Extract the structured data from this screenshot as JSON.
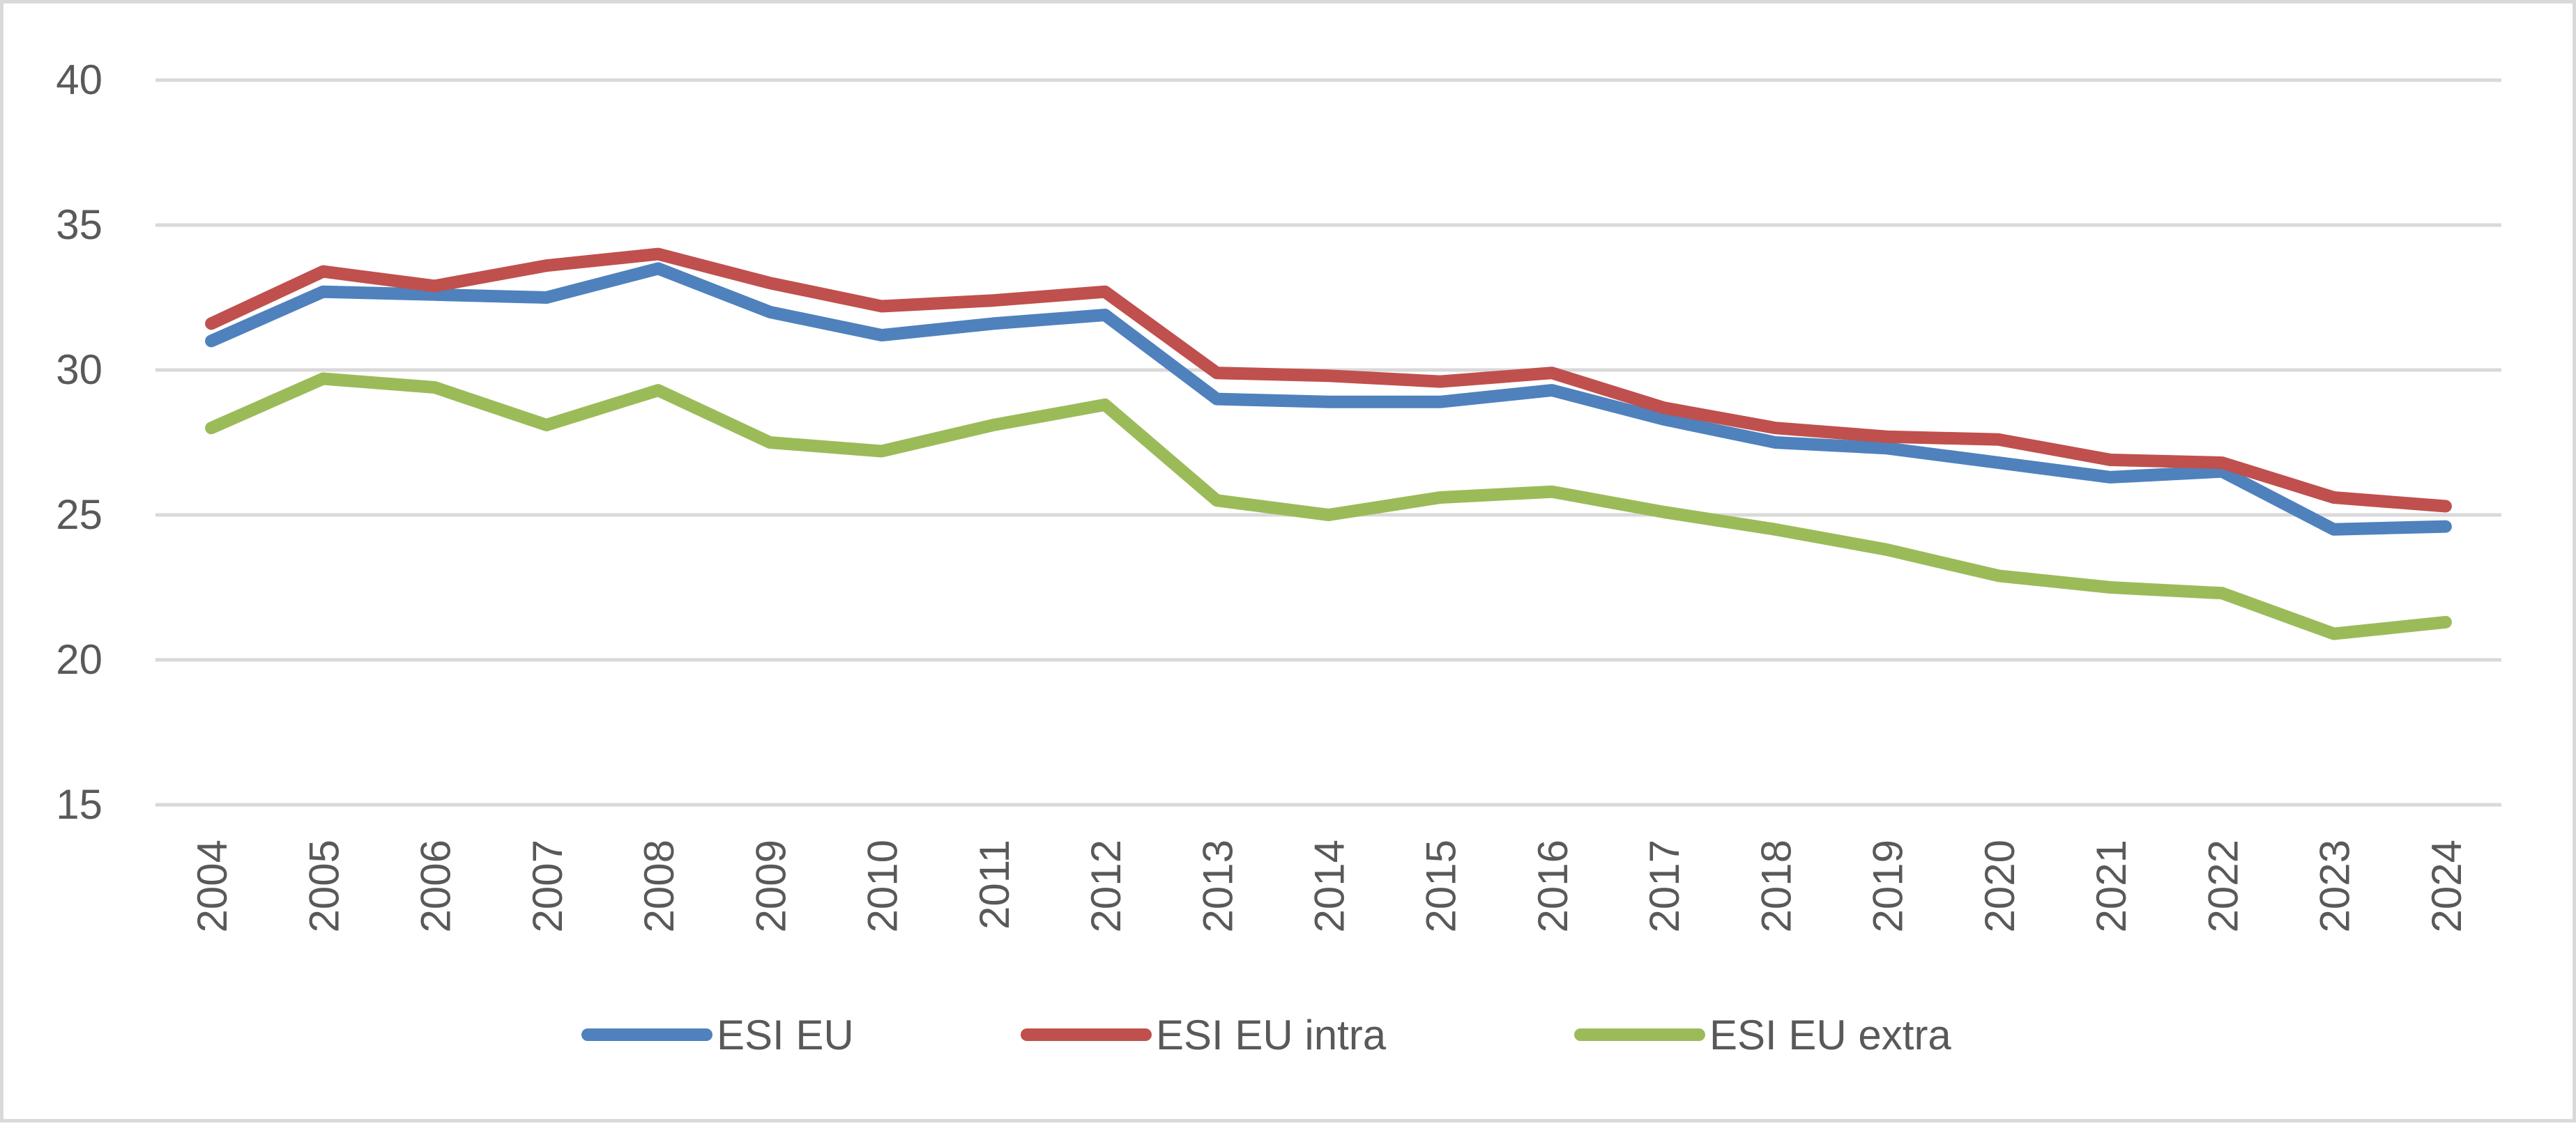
{
  "chart_data": {
    "type": "line",
    "title": "",
    "xlabel": "",
    "ylabel": "",
    "ylim": [
      15,
      40
    ],
    "y_ticks": [
      15,
      20,
      25,
      30,
      35,
      40
    ],
    "grid": true,
    "legend_position": "bottom",
    "categories": [
      "2004",
      "2005",
      "2006",
      "2007",
      "2008",
      "2009",
      "2010",
      "2011",
      "2012",
      "2013",
      "2014",
      "2015",
      "2016",
      "2017",
      "2018",
      "2019",
      "2020",
      "2021",
      "2022",
      "2023",
      "2024"
    ],
    "series": [
      {
        "name": "ESI EU",
        "color": "#4f81bd",
        "values": [
          31.0,
          32.7,
          32.6,
          32.5,
          33.5,
          32.0,
          31.2,
          31.6,
          31.9,
          29.0,
          28.9,
          28.9,
          29.3,
          28.3,
          27.5,
          27.3,
          26.8,
          26.3,
          26.5,
          24.5,
          24.6
        ]
      },
      {
        "name": "ESI EU intra",
        "color": "#c0504d",
        "values": [
          31.6,
          33.4,
          32.9,
          33.6,
          34.0,
          33.0,
          32.2,
          32.4,
          32.7,
          29.9,
          29.8,
          29.6,
          29.9,
          28.7,
          28.0,
          27.7,
          27.6,
          26.9,
          26.8,
          25.6,
          25.3
        ]
      },
      {
        "name": "ESI EU extra",
        "color": "#9bbb59",
        "values": [
          28.0,
          29.7,
          29.4,
          28.1,
          29.3,
          27.5,
          27.2,
          28.1,
          28.8,
          25.5,
          25.0,
          25.6,
          25.8,
          25.1,
          24.5,
          23.8,
          22.9,
          22.5,
          22.3,
          20.9,
          21.3
        ]
      }
    ]
  }
}
